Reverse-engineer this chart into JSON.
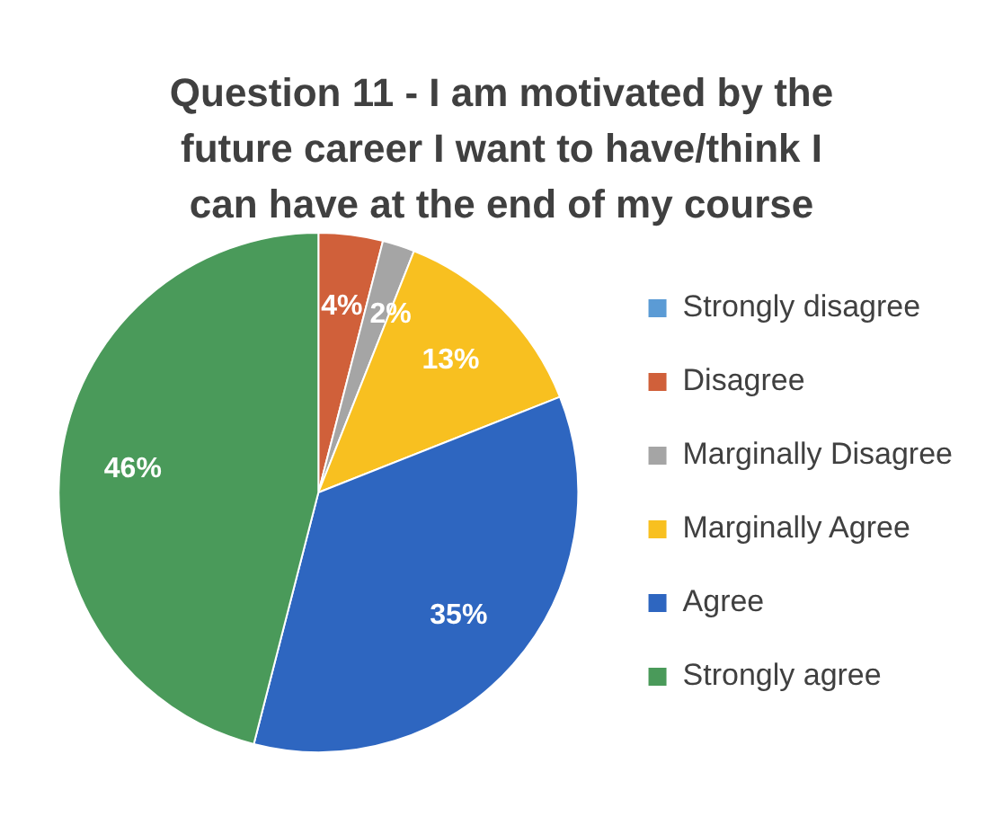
{
  "chart_data": {
    "type": "pie",
    "title": "Question 11 - I am motivated by the future career I want to have/think I can have at the end of my course",
    "categories": [
      "Strongly disagree",
      "Disagree",
      "Marginally Disagree",
      "Marginally Agree",
      "Agree",
      "Strongly agree"
    ],
    "values": [
      0,
      4,
      2,
      13,
      35,
      46
    ],
    "value_labels": [
      null,
      "4%",
      "2%",
      "13%",
      "35%",
      "46%"
    ],
    "colors": [
      "#5b9bd5",
      "#d0603a",
      "#a5a5a5",
      "#f8c020",
      "#2e66c0",
      "#4a9a5a"
    ],
    "legend": "right"
  }
}
